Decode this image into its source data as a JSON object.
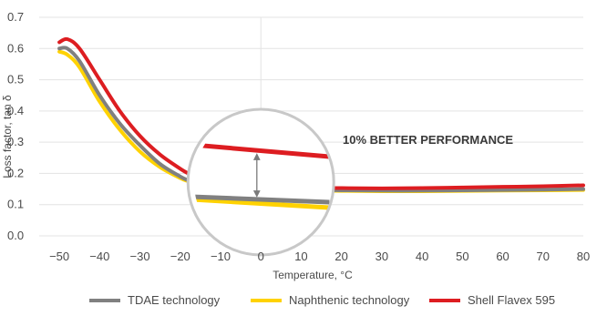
{
  "chart_data": {
    "type": "line",
    "xlabel": "Temperature, °C",
    "ylabel": "Loss factor, tan δ",
    "xlim": [
      -55,
      80
    ],
    "ylim": [
      0,
      0.7
    ],
    "x_ticks": [
      -50,
      -40,
      -30,
      -20,
      -10,
      0,
      10,
      20,
      30,
      40,
      50,
      60,
      70,
      80
    ],
    "x_tick_labels": [
      "−50",
      "−40",
      "−30",
      "−20",
      "−10",
      "0",
      "10",
      "20",
      "30",
      "40",
      "50",
      "60",
      "70",
      "80"
    ],
    "y_ticks": [
      0,
      0.1,
      0.2,
      0.3,
      0.4,
      0.5,
      0.6,
      0.7
    ],
    "y_tick_labels": [
      "0.0",
      "0.1",
      "0.2",
      "0.3",
      "0.4",
      "0.5",
      "0.6",
      "0.7"
    ],
    "grid": "horizontal",
    "legend_position": "bottom",
    "annotation": "10% BETTER PERFORMANCE",
    "series": [
      {
        "name": "TDAE technology",
        "color": "#808080",
        "x": [
          -50,
          -48,
          -45,
          -40,
          -35,
          -30,
          -25,
          -20,
          -18,
          -15,
          -10,
          -5,
          0,
          10,
          20,
          30,
          40,
          50,
          60,
          70,
          80
        ],
        "values": [
          0.6,
          0.6,
          0.56,
          0.45,
          0.36,
          0.29,
          0.23,
          0.19,
          0.178,
          0.168,
          0.16,
          0.155,
          0.152,
          0.148,
          0.146,
          0.145,
          0.145,
          0.146,
          0.147,
          0.148,
          0.15
        ]
      },
      {
        "name": "Naphthenic technology",
        "color": "#FFD200",
        "x": [
          -50,
          -48,
          -45,
          -40,
          -35,
          -30,
          -25,
          -20,
          -18,
          -15,
          -10,
          -5,
          0,
          10,
          20,
          30,
          40,
          50,
          60,
          70,
          80
        ],
        "values": [
          0.59,
          0.58,
          0.54,
          0.43,
          0.34,
          0.27,
          0.22,
          0.185,
          0.175,
          0.165,
          0.158,
          0.153,
          0.15,
          0.146,
          0.144,
          0.143,
          0.143,
          0.144,
          0.145,
          0.146,
          0.147
        ]
      },
      {
        "name": "Shell Flavex 595",
        "color": "#DD1D21",
        "x": [
          -50,
          -48,
          -45,
          -40,
          -35,
          -30,
          -25,
          -20,
          -18,
          -15,
          -10,
          -5,
          0,
          10,
          20,
          30,
          40,
          50,
          60,
          70,
          80
        ],
        "values": [
          0.62,
          0.63,
          0.6,
          0.5,
          0.4,
          0.32,
          0.26,
          0.215,
          0.2,
          0.185,
          0.172,
          0.165,
          0.16,
          0.155,
          0.153,
          0.152,
          0.153,
          0.155,
          0.157,
          0.159,
          0.162
        ]
      }
    ]
  }
}
